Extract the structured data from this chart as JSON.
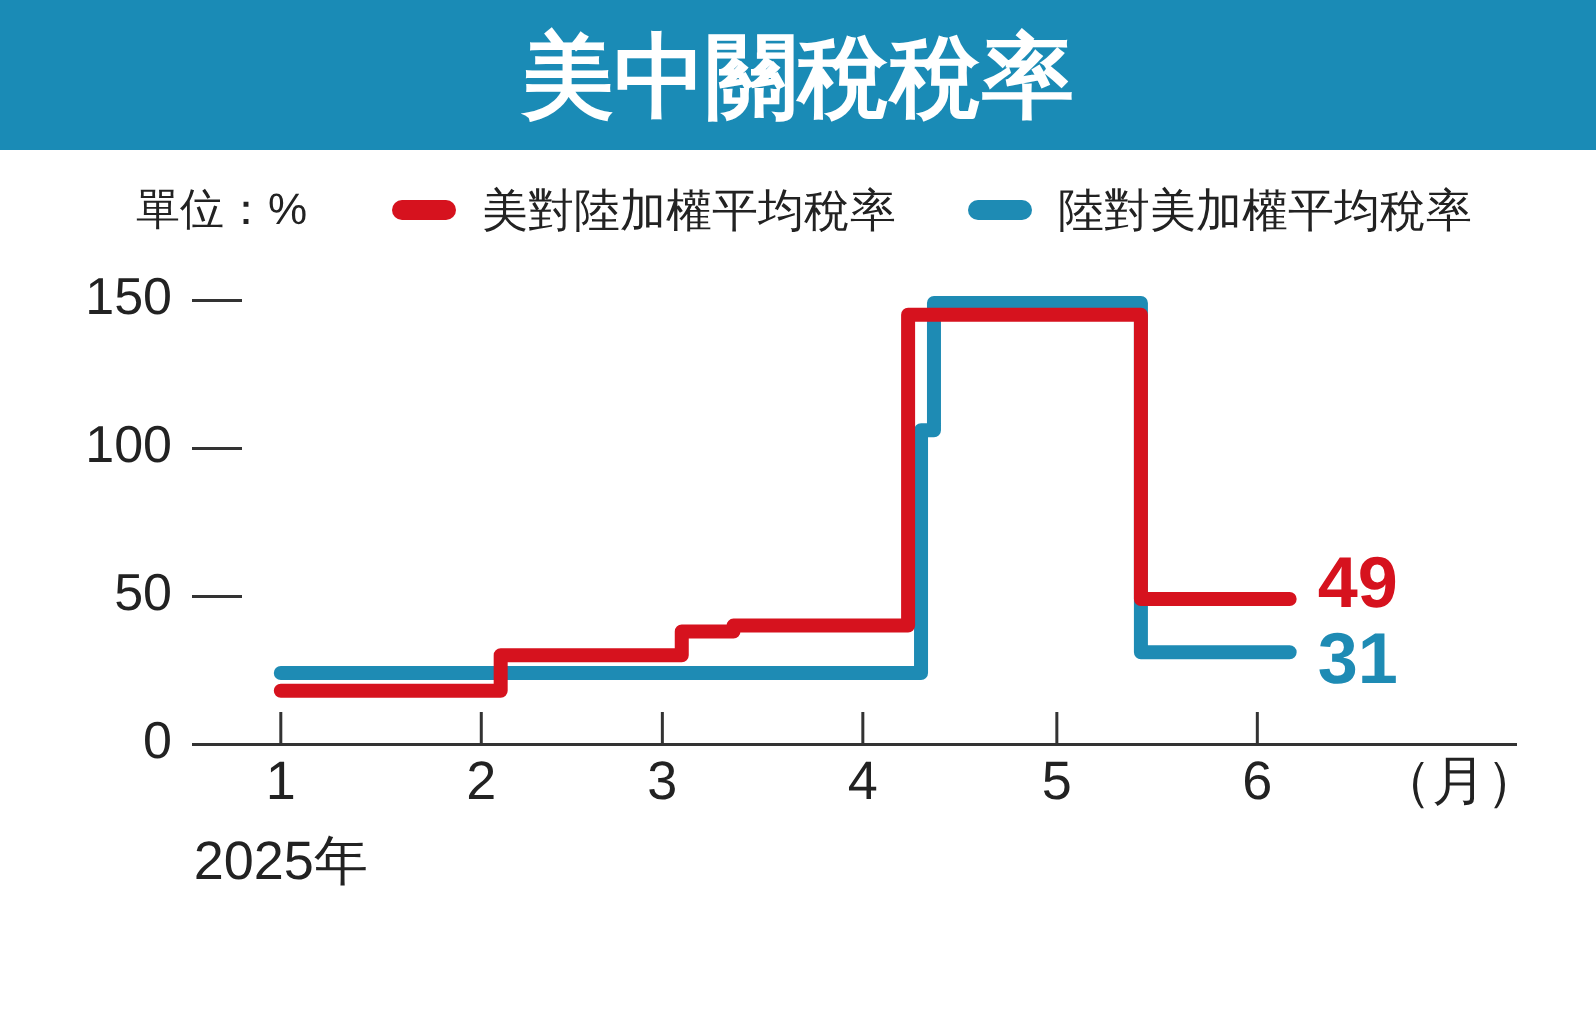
{
  "chart_data": {
    "type": "step",
    "title": "美中關稅稅率",
    "ylabel": "單位：%",
    "xlabel": "（月）",
    "xlim": [
      "2024-12-26",
      "2025-07-11"
    ],
    "xticks": [
      {
        "value": "2025-01-01",
        "label": "1\n2025年"
      },
      {
        "value": "2025-02-01",
        "label": "2"
      },
      {
        "value": "2025-03-01",
        "label": "3"
      },
      {
        "value": "2025-04-01",
        "label": "4"
      },
      {
        "value": "2025-05-01",
        "label": "5"
      },
      {
        "value": "2025-06-01",
        "label": "6"
      }
    ],
    "ylim": [
      0,
      150
    ],
    "yticks": [
      0,
      50,
      100,
      150
    ],
    "grid": false,
    "legend": "top",
    "marker": "none",
    "line_style": "solid",
    "series": [
      {
        "name": "美對陸加權平均稅率",
        "color": "#d6121e",
        "x": [
          "2025-01-01",
          "2025-02-04",
          "2025-03-04",
          "2025-03-12",
          "2025-04-08",
          "2025-05-14",
          "2025-06-06"
        ],
        "values": [
          18,
          30,
          38,
          40,
          145,
          49,
          49
        ],
        "value_labels": [
          null,
          null,
          null,
          null,
          null,
          null,
          "49"
        ]
      },
      {
        "name": "陸對美加權平均稅率",
        "color": "#1e8bb4",
        "x": [
          "2025-01-01",
          "2025-04-10",
          "2025-04-12",
          "2025-05-14",
          "2025-06-06"
        ],
        "values": [
          24,
          106,
          149,
          31,
          31
        ],
        "value_labels": [
          null,
          null,
          null,
          null,
          "31"
        ]
      }
    ]
  }
}
